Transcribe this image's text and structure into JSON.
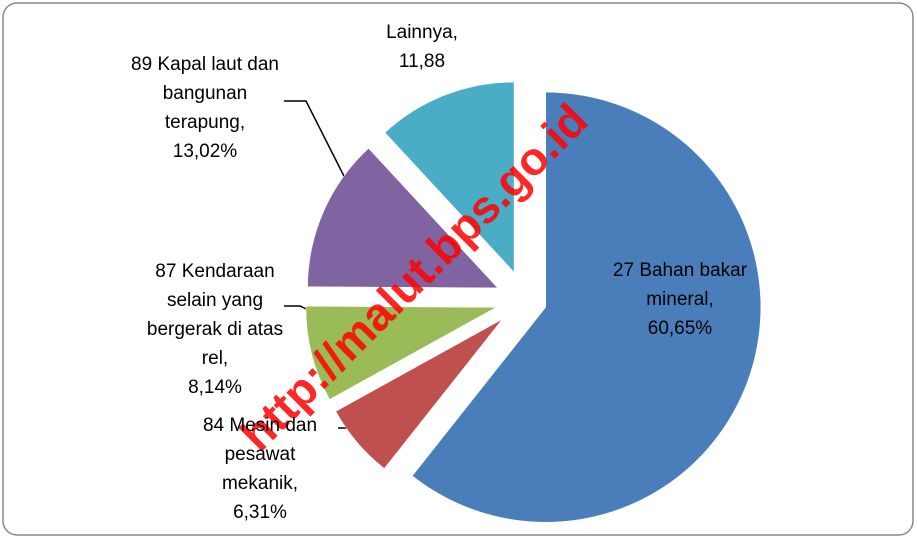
{
  "chart_data": {
    "type": "pie",
    "categories": [
      "27 Bahan bakar mineral,",
      "84 Mesin dan pesawat mekanik,",
      "87 Kendaraan selain yang bergerak di atas rel,",
      "89 Kapal laut dan bangunan terapung,",
      "Lainnya,"
    ],
    "values": [
      60.65,
      6.31,
      8.14,
      13.02,
      11.88
    ],
    "value_labels": [
      "60,65%",
      "6,31%",
      "8,14%",
      "13,02%",
      "11,88"
    ],
    "colors": [
      "#4a7ebb",
      "#c0504d",
      "#9bbb59",
      "#8064a2",
      "#4bacc6"
    ],
    "watermark": "http://malut.bps.go.id"
  }
}
